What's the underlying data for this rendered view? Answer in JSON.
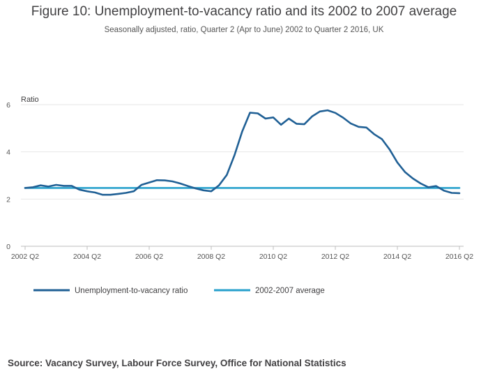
{
  "chart_data": {
    "type": "line",
    "title": "Figure 10: Unemployment-to-vacancy ratio and its 2002 to 2007 average",
    "subtitle": "Seasonally adjusted, ratio, Quarter 2 (Apr to June) 2002 to Quarter 2 2016, UK",
    "ylabel": "Ratio",
    "xlabel": "",
    "ylim": [
      0,
      6
    ],
    "yticks": [
      0,
      2,
      4,
      6
    ],
    "xticks": [
      "2002 Q2",
      "2004 Q2",
      "2006 Q2",
      "2008 Q2",
      "2010 Q2",
      "2012 Q2",
      "2014 Q2",
      "2016 Q2"
    ],
    "x_start": "2002 Q2",
    "x_end": "2016 Q2",
    "grid": true,
    "legend_position": "bottom-left",
    "series": [
      {
        "name": "Unemployment-to-vacancy ratio",
        "color": "#206095",
        "values": [
          2.47,
          2.5,
          2.58,
          2.53,
          2.6,
          2.56,
          2.56,
          2.4,
          2.33,
          2.28,
          2.18,
          2.18,
          2.22,
          2.26,
          2.33,
          2.6,
          2.7,
          2.8,
          2.79,
          2.75,
          2.66,
          2.55,
          2.45,
          2.37,
          2.33,
          2.58,
          3.02,
          3.86,
          4.87,
          5.66,
          5.63,
          5.41,
          5.46,
          5.15,
          5.41,
          5.19,
          5.17,
          5.5,
          5.71,
          5.76,
          5.65,
          5.45,
          5.2,
          5.06,
          5.03,
          4.75,
          4.54,
          4.1,
          3.55,
          3.14,
          2.87,
          2.66,
          2.5,
          2.55,
          2.36,
          2.26,
          2.25
        ]
      },
      {
        "name": "2002-2007 average",
        "color": "#27a0cc",
        "values": [
          2.47,
          2.47,
          2.47,
          2.47,
          2.47,
          2.47,
          2.47,
          2.47,
          2.47,
          2.47,
          2.47,
          2.47,
          2.47,
          2.47,
          2.47,
          2.47,
          2.47,
          2.47,
          2.47,
          2.47,
          2.47,
          2.47,
          2.47,
          2.47,
          2.47,
          2.47,
          2.47,
          2.47,
          2.47,
          2.47,
          2.47,
          2.47,
          2.47,
          2.47,
          2.47,
          2.47,
          2.47,
          2.47,
          2.47,
          2.47,
          2.47,
          2.47,
          2.47,
          2.47,
          2.47,
          2.47,
          2.47,
          2.47,
          2.47,
          2.47,
          2.47,
          2.47,
          2.47,
          2.47,
          2.47,
          2.47,
          2.47
        ]
      }
    ]
  },
  "source": "Source: Vacancy Survey, Labour Force Survey, Office for National Statistics"
}
